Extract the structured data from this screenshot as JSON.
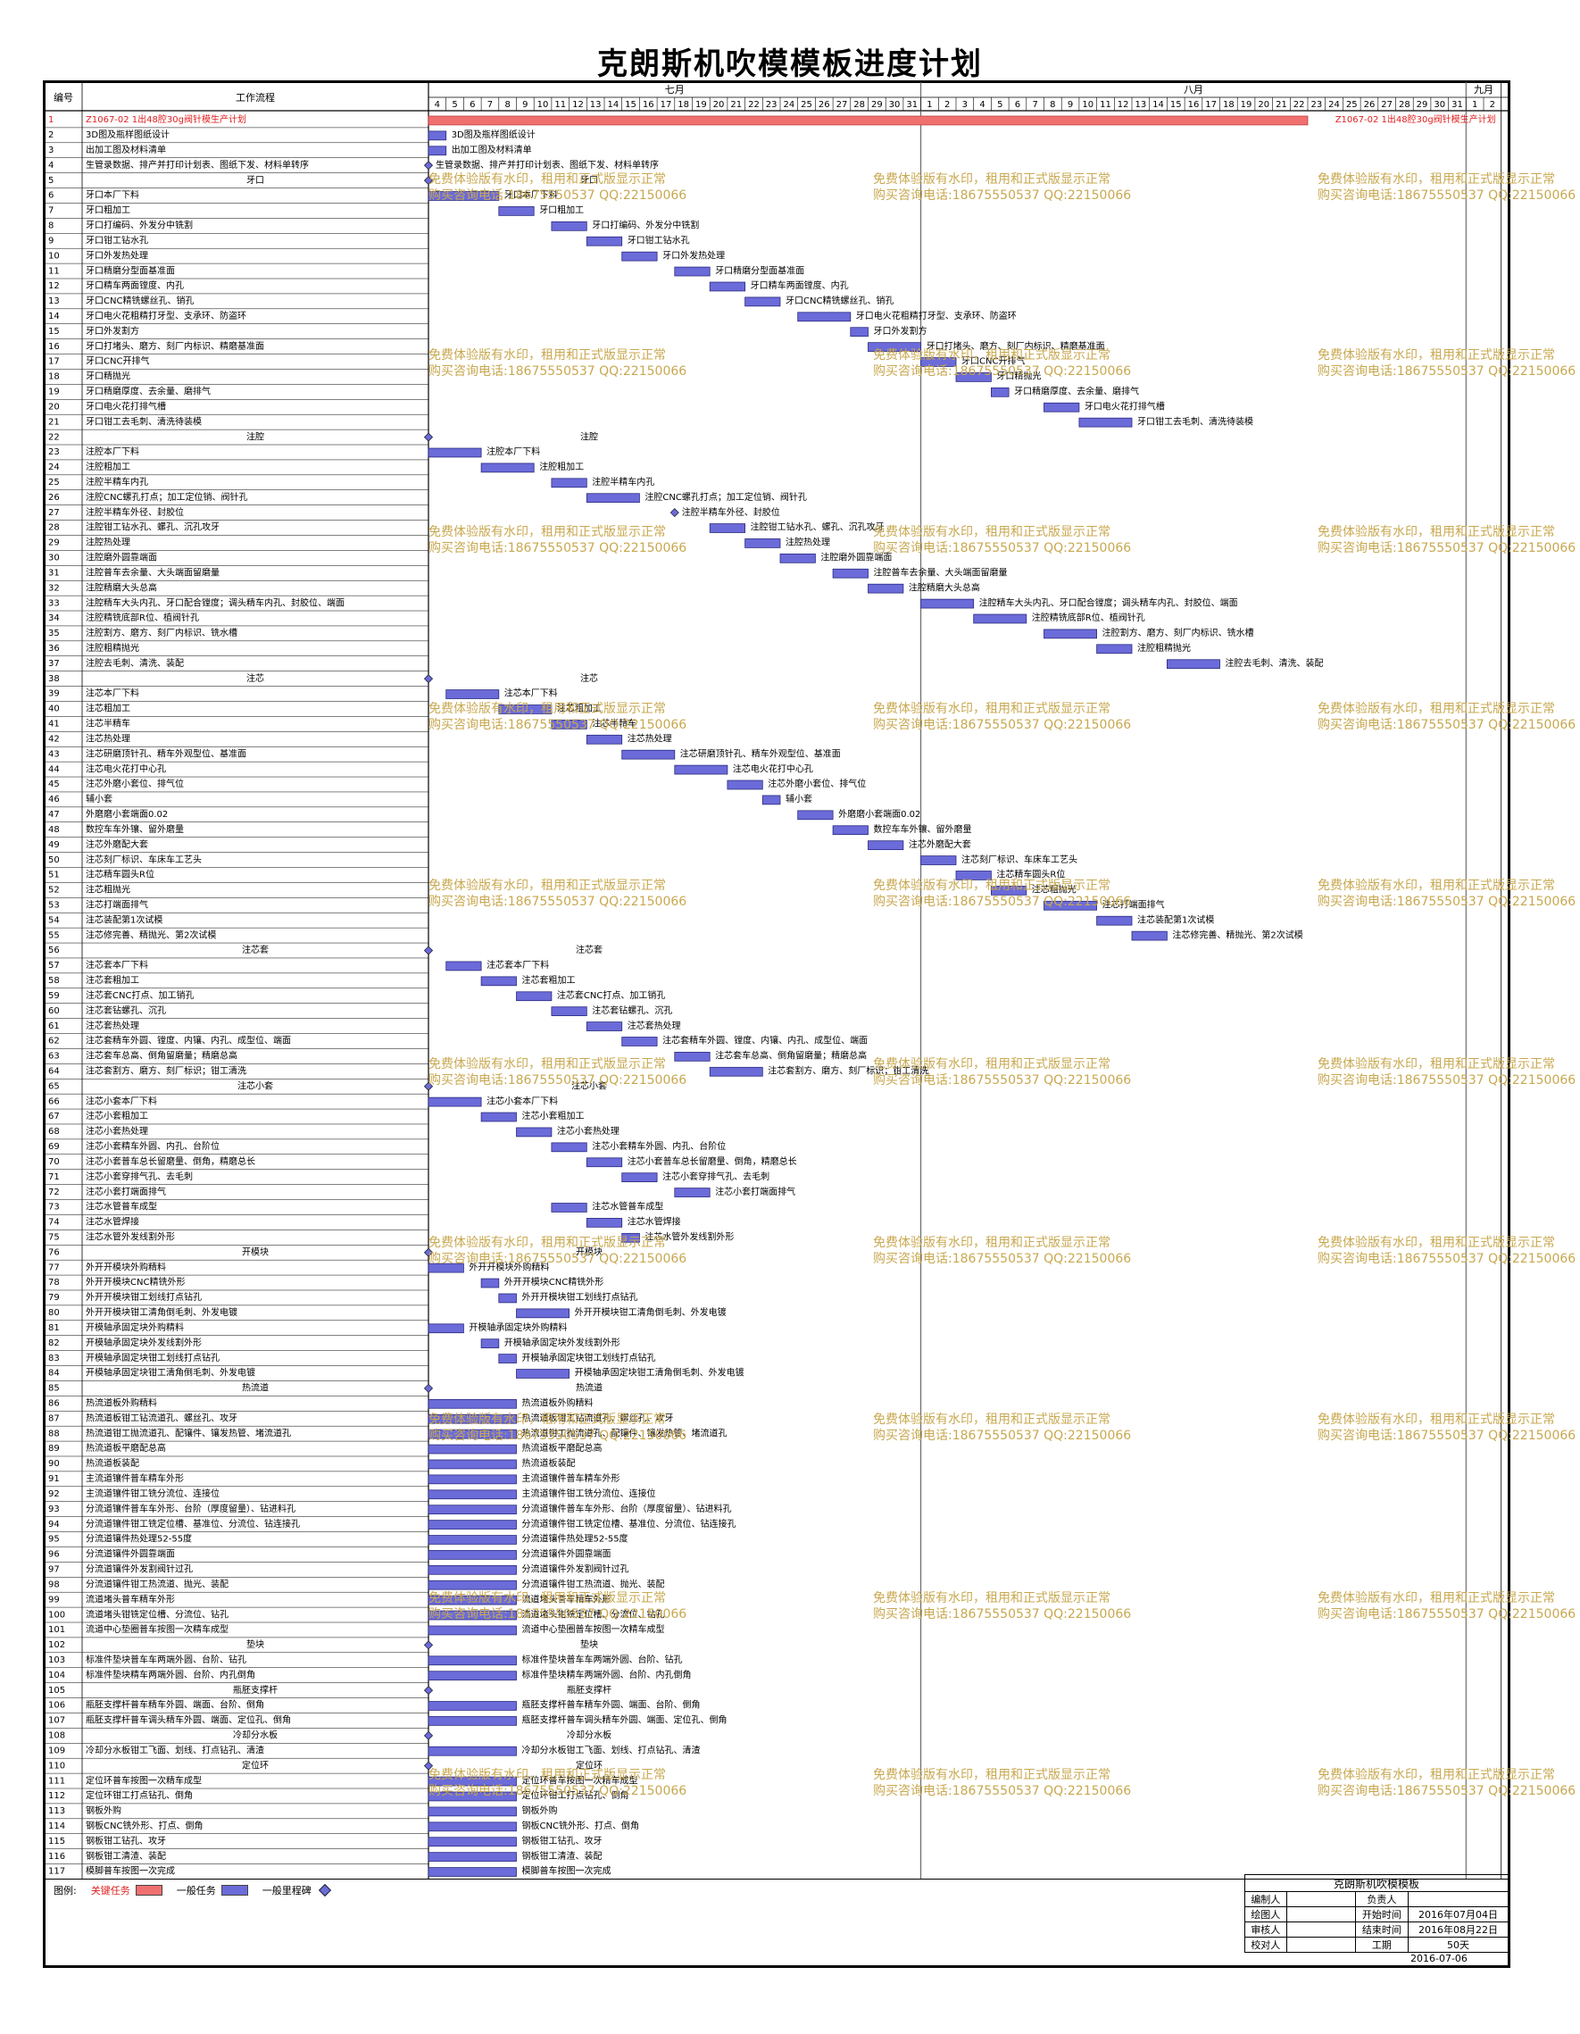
{
  "title": "克朗斯机吹模模板进度计划",
  "header": {
    "col_id": "编号",
    "col_task": "工作流程",
    "months": [
      "七月",
      "八月",
      "九月"
    ],
    "july_days": [
      "4",
      "5",
      "6",
      "7",
      "8",
      "9",
      "10",
      "11",
      "12",
      "13",
      "14",
      "15",
      "16",
      "17",
      "18",
      "19",
      "20",
      "21",
      "22",
      "23",
      "24",
      "25",
      "26",
      "27",
      "28",
      "29",
      "30",
      "31"
    ],
    "aug_days": [
      "1",
      "2",
      "3",
      "4",
      "5",
      "6",
      "7",
      "8",
      "9",
      "10",
      "11",
      "12",
      "13",
      "14",
      "15",
      "16",
      "17",
      "18",
      "19",
      "20",
      "21",
      "22",
      "23",
      "24",
      "25",
      "26",
      "27",
      "28",
      "29",
      "30",
      "31"
    ],
    "sep_days": [
      "1",
      "2"
    ]
  },
  "colors": {
    "critical": "#f07070",
    "normal": "#6b6bd9",
    "milestone": "#6b6bd9",
    "watermark": "#c8a850",
    "critical_text": "#e02020"
  },
  "rows": [
    {
      "id": "1",
      "name": "Z1067-02 1出48腔30g阀针模生产计划",
      "start": 0,
      "dur": 50,
      "type": "critical",
      "label": "Z1067-02 1出48腔30g阀针模生产计划"
    },
    {
      "id": "2",
      "name": "3D图及瓶样图纸设计",
      "start": 0,
      "dur": 1,
      "type": "task"
    },
    {
      "id": "3",
      "name": "出加工图及材料清单",
      "start": 0,
      "dur": 1,
      "type": "task"
    },
    {
      "id": "4",
      "name": "生管录数据、排产并打印计划表、图纸下发、材料单转序",
      "start": 0,
      "dur": 0,
      "type": "milestone"
    },
    {
      "id": "5",
      "name": "牙口",
      "start": 0,
      "dur": 0,
      "type": "summary"
    },
    {
      "id": "6",
      "name": "牙口本厂下料",
      "start": 0,
      "dur": 4,
      "type": "task"
    },
    {
      "id": "7",
      "name": "牙口粗加工",
      "start": 4,
      "dur": 2,
      "type": "task"
    },
    {
      "id": "8",
      "name": "牙口打编码、外发分中铣割",
      "start": 7,
      "dur": 2,
      "type": "task"
    },
    {
      "id": "9",
      "name": "牙口钳工钻水孔",
      "start": 9,
      "dur": 2,
      "type": "task"
    },
    {
      "id": "10",
      "name": "牙口外发热处理",
      "start": 11,
      "dur": 2,
      "type": "task"
    },
    {
      "id": "11",
      "name": "牙口精磨分型面基准面",
      "start": 14,
      "dur": 2,
      "type": "task"
    },
    {
      "id": "12",
      "name": "牙口精车两面镗度、内孔",
      "start": 16,
      "dur": 2,
      "type": "task"
    },
    {
      "id": "13",
      "name": "牙口CNC精铣螺丝孔、销孔",
      "start": 18,
      "dur": 2,
      "type": "task"
    },
    {
      "id": "14",
      "name": "牙口电火花粗精打牙型、支承环、防盗环",
      "start": 21,
      "dur": 3,
      "type": "task"
    },
    {
      "id": "15",
      "name": "牙口外发割方",
      "start": 24,
      "dur": 1,
      "type": "task"
    },
    {
      "id": "16",
      "name": "牙口打堵头、磨方、刻厂内标识、精磨基准面",
      "start": 25,
      "dur": 3,
      "type": "task"
    },
    {
      "id": "17",
      "name": "牙口CNC开排气",
      "start": 28,
      "dur": 2,
      "type": "task"
    },
    {
      "id": "18",
      "name": "牙口精抛光",
      "start": 30,
      "dur": 2,
      "type": "task"
    },
    {
      "id": "19",
      "name": "牙口精磨厚度、去余量、磨排气",
      "start": 32,
      "dur": 1,
      "type": "task"
    },
    {
      "id": "20",
      "name": "牙口电火花打排气槽",
      "start": 35,
      "dur": 2,
      "type": "task"
    },
    {
      "id": "21",
      "name": "牙口钳工去毛刺、清洗待装模",
      "start": 37,
      "dur": 3,
      "type": "task"
    },
    {
      "id": "22",
      "name": "注腔",
      "start": 0,
      "dur": 0,
      "type": "summary"
    },
    {
      "id": "23",
      "name": "注腔本厂下料",
      "start": 0,
      "dur": 3,
      "type": "task"
    },
    {
      "id": "24",
      "name": "注腔粗加工",
      "start": 3,
      "dur": 3,
      "type": "task"
    },
    {
      "id": "25",
      "name": "注腔半精车内孔",
      "start": 7,
      "dur": 2,
      "type": "task"
    },
    {
      "id": "26",
      "name": "注腔CNC螺孔打点；加工定位销、阀针孔",
      "start": 9,
      "dur": 3,
      "type": "task"
    },
    {
      "id": "27",
      "name": "注腔半精车外径、封胶位",
      "start": 14,
      "dur": 0,
      "type": "milestone"
    },
    {
      "id": "28",
      "name": "注腔钳工钻水孔、螺孔、沉孔攻牙",
      "start": 16,
      "dur": 2,
      "type": "task"
    },
    {
      "id": "29",
      "name": "注腔热处理",
      "start": 18,
      "dur": 2,
      "type": "task"
    },
    {
      "id": "30",
      "name": "注腔磨外圆靠端面",
      "start": 20,
      "dur": 2,
      "type": "task"
    },
    {
      "id": "31",
      "name": "注腔普车去余量、大头端面留磨量",
      "start": 23,
      "dur": 2,
      "type": "task"
    },
    {
      "id": "32",
      "name": "注腔精磨大头总高",
      "start": 25,
      "dur": 2,
      "type": "task"
    },
    {
      "id": "33",
      "name": "注腔精车大头内孔、牙口配合镗度；调头精车内孔、封胶位、端面",
      "start": 28,
      "dur": 3,
      "type": "task"
    },
    {
      "id": "34",
      "name": "注腔精铣底部R位、植阀针孔",
      "start": 31,
      "dur": 3,
      "type": "task"
    },
    {
      "id": "35",
      "name": "注腔割方、磨方、刻厂内标识、铣水槽",
      "start": 35,
      "dur": 3,
      "type": "task"
    },
    {
      "id": "36",
      "name": "注腔粗精抛光",
      "start": 38,
      "dur": 2,
      "type": "task"
    },
    {
      "id": "37",
      "name": "注腔去毛刺、清洗、装配",
      "start": 42,
      "dur": 3,
      "type": "task"
    },
    {
      "id": "38",
      "name": "注芯",
      "start": 0,
      "dur": 0,
      "type": "summary"
    },
    {
      "id": "39",
      "name": "注芯本厂下料",
      "start": 1,
      "dur": 3,
      "type": "task"
    },
    {
      "id": "40",
      "name": "注芯粗加工",
      "start": 4,
      "dur": 3,
      "type": "task"
    },
    {
      "id": "41",
      "name": "注芯半精车",
      "start": 7,
      "dur": 2,
      "type": "task"
    },
    {
      "id": "42",
      "name": "注芯热处理",
      "start": 9,
      "dur": 2,
      "type": "task"
    },
    {
      "id": "43",
      "name": "注芯研磨顶针孔、精车外观型位、基准面",
      "start": 11,
      "dur": 3,
      "type": "task"
    },
    {
      "id": "44",
      "name": "注芯电火花打中心孔",
      "start": 14,
      "dur": 3,
      "type": "task"
    },
    {
      "id": "45",
      "name": "注芯外磨小套位、排气位",
      "start": 17,
      "dur": 2,
      "type": "task"
    },
    {
      "id": "46",
      "name": "辅小套",
      "start": 19,
      "dur": 1,
      "type": "task"
    },
    {
      "id": "47",
      "name": "外磨磨小套端面0.02",
      "start": 21,
      "dur": 2,
      "type": "task"
    },
    {
      "id": "48",
      "name": "数控车车外镶、留外磨量",
      "start": 23,
      "dur": 2,
      "type": "task"
    },
    {
      "id": "49",
      "name": "注芯外磨配大套",
      "start": 25,
      "dur": 2,
      "type": "task"
    },
    {
      "id": "50",
      "name": "注芯刻厂标识、车床车工艺头",
      "start": 28,
      "dur": 2,
      "type": "task"
    },
    {
      "id": "51",
      "name": "注芯精车圆头R位",
      "start": 30,
      "dur": 2,
      "type": "task"
    },
    {
      "id": "52",
      "name": "注芯粗抛光",
      "start": 32,
      "dur": 2,
      "type": "task"
    },
    {
      "id": "53",
      "name": "注芯打端面排气",
      "start": 35,
      "dur": 3,
      "type": "task"
    },
    {
      "id": "54",
      "name": "注芯装配第1次试模",
      "start": 38,
      "dur": 2,
      "type": "task"
    },
    {
      "id": "55",
      "name": "注芯修完善、精抛光、第2次试模",
      "start": 40,
      "dur": 2,
      "type": "task"
    },
    {
      "id": "56",
      "name": "注芯套",
      "start": 0,
      "dur": 0,
      "type": "summary"
    },
    {
      "id": "57",
      "name": "注芯套本厂下料",
      "start": 1,
      "dur": 2,
      "type": "task"
    },
    {
      "id": "58",
      "name": "注芯套粗加工",
      "start": 3,
      "dur": 2,
      "type": "task"
    },
    {
      "id": "59",
      "name": "注芯套CNC打点、加工销孔",
      "start": 5,
      "dur": 2,
      "type": "task"
    },
    {
      "id": "60",
      "name": "注芯套钻螺孔、沉孔",
      "start": 7,
      "dur": 2,
      "type": "task"
    },
    {
      "id": "61",
      "name": "注芯套热处理",
      "start": 9,
      "dur": 2,
      "type": "task"
    },
    {
      "id": "62",
      "name": "注芯套精车外圆、镗度、内镶、内孔、成型位、端面",
      "start": 11,
      "dur": 2,
      "type": "task"
    },
    {
      "id": "63",
      "name": "注芯套车总高、倒角留磨量；精磨总高",
      "start": 14,
      "dur": 2,
      "type": "task"
    },
    {
      "id": "64",
      "name": "注芯套割方、磨方、刻厂标识；钳工清洗",
      "start": 16,
      "dur": 3,
      "type": "task"
    },
    {
      "id": "65",
      "name": "注芯小套",
      "start": 0,
      "dur": 0,
      "type": "summary"
    },
    {
      "id": "66",
      "name": "注芯小套本厂下料",
      "start": 0,
      "dur": 3,
      "type": "task"
    },
    {
      "id": "67",
      "name": "注芯小套粗加工",
      "start": 3,
      "dur": 2,
      "type": "task"
    },
    {
      "id": "68",
      "name": "注芯小套热处理",
      "start": 5,
      "dur": 2,
      "type": "task"
    },
    {
      "id": "69",
      "name": "注芯小套精车外圆、内孔、台阶位",
      "start": 7,
      "dur": 2,
      "type": "task"
    },
    {
      "id": "70",
      "name": "注芯小套普车总长留磨量、倒角，精磨总长",
      "start": 9,
      "dur": 2,
      "type": "task"
    },
    {
      "id": "71",
      "name": "注芯小套穿排气孔、去毛刺",
      "start": 11,
      "dur": 2,
      "type": "task"
    },
    {
      "id": "72",
      "name": "注芯小套打端面排气",
      "start": 14,
      "dur": 2,
      "type": "task"
    },
    {
      "id": "73",
      "name": "注芯水管普车成型",
      "start": 7,
      "dur": 2,
      "type": "task"
    },
    {
      "id": "74",
      "name": "注芯水管焊接",
      "start": 9,
      "dur": 2,
      "type": "task"
    },
    {
      "id": "75",
      "name": "注芯水管外发线割外形",
      "start": 11,
      "dur": 1,
      "type": "task"
    },
    {
      "id": "76",
      "name": "开模块",
      "start": 0,
      "dur": 0,
      "type": "summary"
    },
    {
      "id": "77",
      "name": "外开开模块外购精料",
      "start": 0,
      "dur": 2,
      "type": "task"
    },
    {
      "id": "78",
      "name": "外开开模块CNC精铣外形",
      "start": 3,
      "dur": 1,
      "type": "task"
    },
    {
      "id": "79",
      "name": "外开开模块钳工划线打点钻孔",
      "start": 4,
      "dur": 1,
      "type": "task"
    },
    {
      "id": "80",
      "name": "外开开模块钳工清角倒毛刺、外发电镀",
      "start": 5,
      "dur": 3,
      "type": "task"
    },
    {
      "id": "81",
      "name": "开模轴承固定块外购精料",
      "start": 0,
      "dur": 2,
      "type": "task"
    },
    {
      "id": "82",
      "name": "开模轴承固定块外发线割外形",
      "start": 3,
      "dur": 1,
      "type": "task"
    },
    {
      "id": "83",
      "name": "开模轴承固定块钳工划线打点钻孔",
      "start": 4,
      "dur": 1,
      "type": "task"
    },
    {
      "id": "84",
      "name": "开模轴承固定块钳工清角倒毛刺、外发电镀",
      "start": 5,
      "dur": 3,
      "type": "task"
    },
    {
      "id": "85",
      "name": "热流道",
      "start": 0,
      "dur": 0,
      "type": "summary"
    },
    {
      "id": "86",
      "name": "热流道板外购精料",
      "start": 0,
      "dur": 5,
      "type": "task"
    },
    {
      "id": "87",
      "name": "热流道板钳工钻流道孔、螺丝孔、攻牙",
      "start": 0,
      "dur": 5,
      "type": "task"
    },
    {
      "id": "88",
      "name": "热流道钳工抛流道孔、配镶件、镶发热管、堵流道孔",
      "start": 0,
      "dur": 5,
      "type": "task"
    },
    {
      "id": "89",
      "name": "热流道板平磨配总高",
      "start": 0,
      "dur": 5,
      "type": "task"
    },
    {
      "id": "90",
      "name": "热流道板装配",
      "start": 0,
      "dur": 5,
      "type": "task"
    },
    {
      "id": "91",
      "name": "主流道镶件普车精车外形",
      "start": 0,
      "dur": 5,
      "type": "task"
    },
    {
      "id": "92",
      "name": "主流道镶件钳工铣分流位、连接位",
      "start": 0,
      "dur": 5,
      "type": "task"
    },
    {
      "id": "93",
      "name": "分流道镶件普车车外形、台阶（厚度留量）、钻进料孔",
      "start": 0,
      "dur": 5,
      "type": "task"
    },
    {
      "id": "94",
      "name": "分流道镶件钳工铣定位槽、基准位、分流位、钻连接孔",
      "start": 0,
      "dur": 5,
      "type": "task"
    },
    {
      "id": "95",
      "name": "分流道镶件热处理52-55度",
      "start": 0,
      "dur": 5,
      "type": "task"
    },
    {
      "id": "96",
      "name": "分流道镶件外圆靠端面",
      "start": 0,
      "dur": 5,
      "type": "task"
    },
    {
      "id": "97",
      "name": "分流道镶件外发割阀针过孔",
      "start": 0,
      "dur": 5,
      "type": "task"
    },
    {
      "id": "98",
      "name": "分流道镶件钳工热流道、抛光、装配",
      "start": 0,
      "dur": 5,
      "type": "task"
    },
    {
      "id": "99",
      "name": "流道堵头普车精车外形",
      "start": 0,
      "dur": 5,
      "type": "task"
    },
    {
      "id": "100",
      "name": "流道堵头钳铣定位槽、分流位、钻孔",
      "start": 0,
      "dur": 5,
      "type": "task"
    },
    {
      "id": "101",
      "name": "流道中心垫圈普车按图一次精车成型",
      "start": 0,
      "dur": 5,
      "type": "task"
    },
    {
      "id": "102",
      "name": "垫块",
      "start": 0,
      "dur": 0,
      "type": "summary"
    },
    {
      "id": "103",
      "name": "标准件垫块普车车两端外圆、台阶、钻孔",
      "start": 0,
      "dur": 5,
      "type": "task"
    },
    {
      "id": "104",
      "name": "标准件垫块精车两端外圆、台阶、内孔倒角",
      "start": 0,
      "dur": 5,
      "type": "task"
    },
    {
      "id": "105",
      "name": "瓶胚支撑杆",
      "start": 0,
      "dur": 0,
      "type": "summary"
    },
    {
      "id": "106",
      "name": "瓶胚支撑杆普车精车外圆、端面、台阶、倒角",
      "start": 0,
      "dur": 5,
      "type": "task"
    },
    {
      "id": "107",
      "name": "瓶胚支撑杆普车调头精车外圆、端面、定位孔、倒角",
      "start": 0,
      "dur": 5,
      "type": "task"
    },
    {
      "id": "108",
      "name": "冷却分水板",
      "start": 0,
      "dur": 0,
      "type": "summary"
    },
    {
      "id": "109",
      "name": "冷却分水板钳工飞面、划线、打点钻孔、清渣",
      "start": 0,
      "dur": 5,
      "type": "task"
    },
    {
      "id": "110",
      "name": "定位环",
      "start": 0,
      "dur": 0,
      "type": "summary"
    },
    {
      "id": "111",
      "name": "定位环普车按图一次精车成型",
      "start": 0,
      "dur": 5,
      "type": "task"
    },
    {
      "id": "112",
      "name": "定位环钳工打点钻孔、倒角",
      "start": 0,
      "dur": 5,
      "type": "task"
    },
    {
      "id": "113",
      "name": "钢板外购",
      "start": 0,
      "dur": 5,
      "type": "task"
    },
    {
      "id": "114",
      "name": "钢板CNC铣外形、打点、倒角",
      "start": 0,
      "dur": 5,
      "type": "task"
    },
    {
      "id": "115",
      "name": "钢板钳工钻孔、攻牙",
      "start": 0,
      "dur": 5,
      "type": "task"
    },
    {
      "id": "116",
      "name": "钢板钳工清渣、装配",
      "start": 0,
      "dur": 5,
      "type": "task"
    },
    {
      "id": "117",
      "name": "模脚普车按图一次完成",
      "start": 0,
      "dur": 5,
      "type": "task"
    }
  ],
  "watermark": {
    "line1": "免费体验版有水印，租用和正式版显示正常",
    "line2": "购买咨询电话:18675550537 QQ:22150066"
  },
  "legend": {
    "label": "图例:",
    "critical": "关键任务",
    "normal": "一般任务",
    "milestone": "一般里程碑"
  },
  "signoff": {
    "title": "克朗斯机吹模模板",
    "rows": [
      [
        "编制人",
        "",
        "负责人",
        ""
      ],
      [
        "绘图人",
        "",
        "开始时间",
        "2016年07月04日"
      ],
      [
        "审核人",
        "",
        "结束时间",
        "2016年08月22日"
      ],
      [
        "校对人",
        "",
        "工期",
        "50天"
      ]
    ],
    "date": "2016-07-06"
  }
}
